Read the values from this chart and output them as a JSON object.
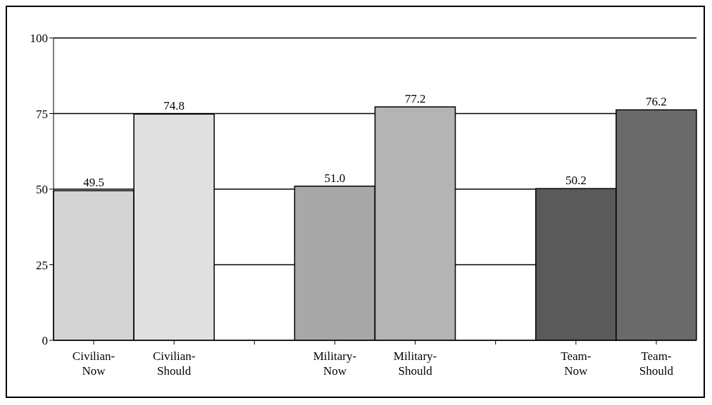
{
  "chart_data": {
    "type": "bar",
    "categories": [
      "Civilian-Now",
      "Civilian-Should",
      null,
      "Military-Now",
      "Military-Should",
      null,
      "Team-Now",
      "Team-Should"
    ],
    "values": [
      49.5,
      74.8,
      null,
      51.0,
      77.2,
      null,
      50.2,
      76.2
    ],
    "value_labels": [
      "49.5",
      "74.8",
      null,
      "51.0",
      "77.2",
      null,
      "50.2",
      "76.2"
    ],
    "colors": [
      "#d4d4d4",
      "#e0e0e0",
      null,
      "#a8a8a8",
      "#b4b4b4",
      null,
      "#5a5a5a",
      "#6a6a6a"
    ],
    "ylim": [
      0,
      100
    ],
    "yticks": [
      0,
      25,
      50,
      75,
      100
    ],
    "grid": "y"
  }
}
